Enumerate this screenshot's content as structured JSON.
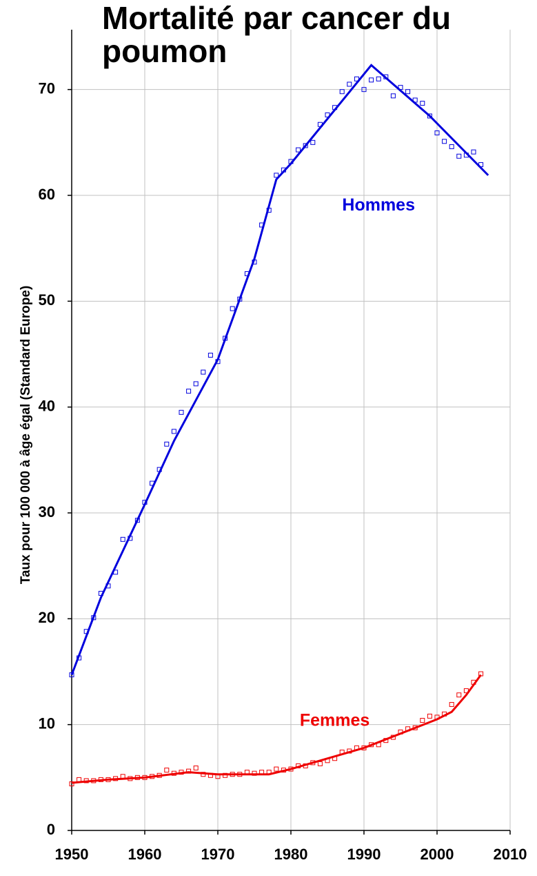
{
  "chart_data": {
    "type": "scatter",
    "title": "Mortalité par cancer du poumon",
    "y_label": "Taux pour 100 000 à âge égal (Standard Europe)",
    "xlim": [
      1950,
      2010
    ],
    "xticks": [
      1950,
      1960,
      1970,
      1980,
      1990,
      2000,
      2010
    ],
    "ylim": [
      0,
      75
    ],
    "yticks": [
      0,
      10,
      20,
      30,
      40,
      50,
      60,
      70
    ],
    "grid": true,
    "series": [
      {
        "name": "Hommes",
        "color": "#0000dd",
        "x": [
          1950,
          1951,
          1952,
          1953,
          1954,
          1955,
          1956,
          1957,
          1958,
          1959,
          1960,
          1961,
          1962,
          1963,
          1964,
          1965,
          1966,
          1967,
          1968,
          1969,
          1970,
          1971,
          1972,
          1973,
          1974,
          1975,
          1976,
          1977,
          1978,
          1979,
          1980,
          1981,
          1982,
          1983,
          1984,
          1985,
          1986,
          1987,
          1988,
          1989,
          1990,
          1991,
          1992,
          1993,
          1994,
          1995,
          1996,
          1997,
          1998,
          1999,
          2000,
          2001,
          2002,
          2003,
          2004,
          2005,
          2006
        ],
        "values": [
          14.7,
          16.3,
          18.8,
          20.1,
          22.4,
          23.1,
          24.4,
          27.5,
          27.6,
          29.3,
          31.0,
          32.8,
          34.1,
          36.5,
          37.7,
          39.5,
          41.5,
          42.2,
          43.3,
          44.9,
          44.3,
          46.5,
          49.3,
          50.2,
          52.6,
          53.7,
          57.2,
          58.6,
          61.9,
          62.4,
          63.2,
          64.3,
          64.7,
          65.0,
          66.7,
          67.6,
          68.3,
          69.8,
          70.5,
          71.0,
          70.0,
          70.9,
          71.0,
          71.2,
          69.4,
          70.2,
          69.8,
          69.0,
          68.7,
          67.5,
          65.9,
          65.1,
          64.6,
          63.7,
          63.8,
          64.1,
          62.9
        ],
        "trend": {
          "x": [
            1950,
            1954,
            1960,
            1964,
            1970,
            1975,
            1978,
            1980,
            1991,
            1999,
            2007
          ],
          "values": [
            14.7,
            22,
            30.8,
            36.8,
            44.5,
            54,
            61.5,
            63,
            72.3,
            67.5,
            61.9
          ]
        }
      },
      {
        "name": "Femmes",
        "color": "#ee0000",
        "x": [
          1950,
          1951,
          1952,
          1953,
          1954,
          1955,
          1956,
          1957,
          1958,
          1959,
          1960,
          1961,
          1962,
          1963,
          1964,
          1965,
          1966,
          1967,
          1968,
          1969,
          1970,
          1971,
          1972,
          1973,
          1974,
          1975,
          1976,
          1977,
          1978,
          1979,
          1980,
          1981,
          1982,
          1983,
          1984,
          1985,
          1986,
          1987,
          1988,
          1989,
          1990,
          1991,
          1992,
          1993,
          1994,
          1995,
          1996,
          1997,
          1998,
          1999,
          2000,
          2001,
          2002,
          2003,
          2004,
          2005,
          2006
        ],
        "values": [
          4.4,
          4.8,
          4.7,
          4.7,
          4.8,
          4.8,
          4.9,
          5.1,
          4.9,
          5.0,
          5.0,
          5.1,
          5.2,
          5.7,
          5.4,
          5.5,
          5.6,
          5.9,
          5.3,
          5.2,
          5.1,
          5.2,
          5.3,
          5.3,
          5.5,
          5.4,
          5.5,
          5.5,
          5.8,
          5.7,
          5.8,
          6.1,
          6.1,
          6.4,
          6.3,
          6.6,
          6.8,
          7.4,
          7.5,
          7.8,
          7.8,
          8.1,
          8.1,
          8.5,
          8.8,
          9.3,
          9.6,
          9.7,
          10.4,
          10.8,
          10.7,
          11.0,
          11.9,
          12.8,
          13.2,
          14.0,
          14.8
        ],
        "trend": {
          "x": [
            1950,
            1955,
            1960,
            1966,
            1970,
            1973,
            1977,
            1980,
            1990,
            2000,
            2002,
            2004,
            2006
          ],
          "values": [
            4.5,
            4.8,
            5.0,
            5.5,
            5.3,
            5.3,
            5.3,
            5.8,
            7.8,
            10.5,
            11.2,
            12.8,
            14.7
          ]
        }
      }
    ]
  }
}
